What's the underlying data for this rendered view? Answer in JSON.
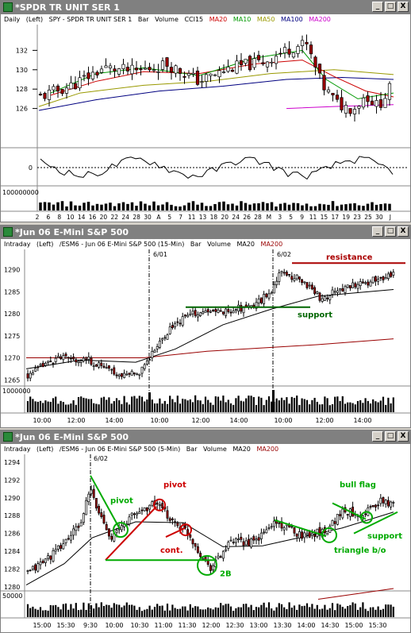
{
  "windows": [
    {
      "title": "*SPDR TR UNIT SER 1",
      "info": {
        "period": "Daily",
        "axis": "(Left)",
        "desc": "SPY - SPDR TR UNIT SER 1",
        "bar": "Bar",
        "volume": "Volume",
        "ind": [
          {
            "label": "CCI15",
            "color": "#000000"
          },
          {
            "label": "MA20",
            "color": "#cc0000"
          },
          {
            "label": "MA10",
            "color": "#009900"
          },
          {
            "label": "MA50",
            "color": "#999900"
          },
          {
            "label": "MA100",
            "color": "#000080"
          },
          {
            "label": "MA200",
            "color": "#cc00cc"
          }
        ]
      },
      "yticks": [
        "132",
        "130",
        "128",
        "126"
      ],
      "cci_label": "0",
      "vol_label": "100000000",
      "xticks": [
        "2",
        "6",
        "8",
        "10",
        "14",
        "16",
        "20",
        "22",
        "24",
        "28",
        "30",
        "A",
        "5",
        "7",
        "11",
        "13",
        "18",
        "20",
        "24",
        "26",
        "28",
        "M",
        "3",
        "5",
        "9",
        "11",
        "15",
        "17",
        "19",
        "23",
        "25",
        "30",
        "J"
      ]
    },
    {
      "title": "*Jun 06  E-Mini S&P 500",
      "info": {
        "period": "Intraday",
        "axis": "(Left)",
        "desc": "/ESM6 - Jun 06  E-Mini S&P 500  (15-Min)",
        "bar": "Bar",
        "volume": "Volume",
        "ind": [
          {
            "label": "MA20",
            "color": "#000000"
          },
          {
            "label": "MA200",
            "color": "#990000"
          }
        ]
      },
      "yticks": [
        "1290",
        "1285",
        "1280",
        "1275",
        "1270",
        "1265"
      ],
      "vol_label": "1000000",
      "xticks": [
        "10:00",
        "12:00",
        "14:00",
        "10:00",
        "12:00",
        "14:00",
        "10:00",
        "12:00",
        "14:00"
      ],
      "date_marks": [
        "6/01",
        "6/02"
      ],
      "annotations": {
        "resistance": "resistance",
        "support": "support"
      }
    },
    {
      "title": "*Jun 06  E-Mini S&P 500",
      "info": {
        "period": "Intraday",
        "axis": "(Left)",
        "desc": "/ESM6 - Jun 06  E-Mini S&P 500  (5-Min)",
        "bar": "Bar",
        "volume": "Volume",
        "ind": [
          {
            "label": "MA20",
            "color": "#000000"
          },
          {
            "label": "MA200",
            "color": "#990000"
          }
        ]
      },
      "yticks": [
        "1294",
        "1292",
        "1290",
        "1288",
        "1286",
        "1284",
        "1282",
        "1280"
      ],
      "vol_label": "50000",
      "xticks": [
        "15:00",
        "15:30",
        "9:30",
        "10:00",
        "10:30",
        "11:00",
        "11:30",
        "12:00",
        "12:30",
        "13:00",
        "13:30",
        "14:00",
        "14:30",
        "15:00",
        "15:30"
      ],
      "date_marks": [
        "6/02"
      ],
      "annotations": {
        "pivot_green": "pivot",
        "pivot_red": "pivot",
        "cont": "cont.",
        "two_b": "2B",
        "bull_flag": "bull flag",
        "support": "support",
        "triangle": "triangle b/o"
      }
    }
  ],
  "window_buttons": {
    "minimize": "_",
    "maximize": "□",
    "close": "X"
  }
}
